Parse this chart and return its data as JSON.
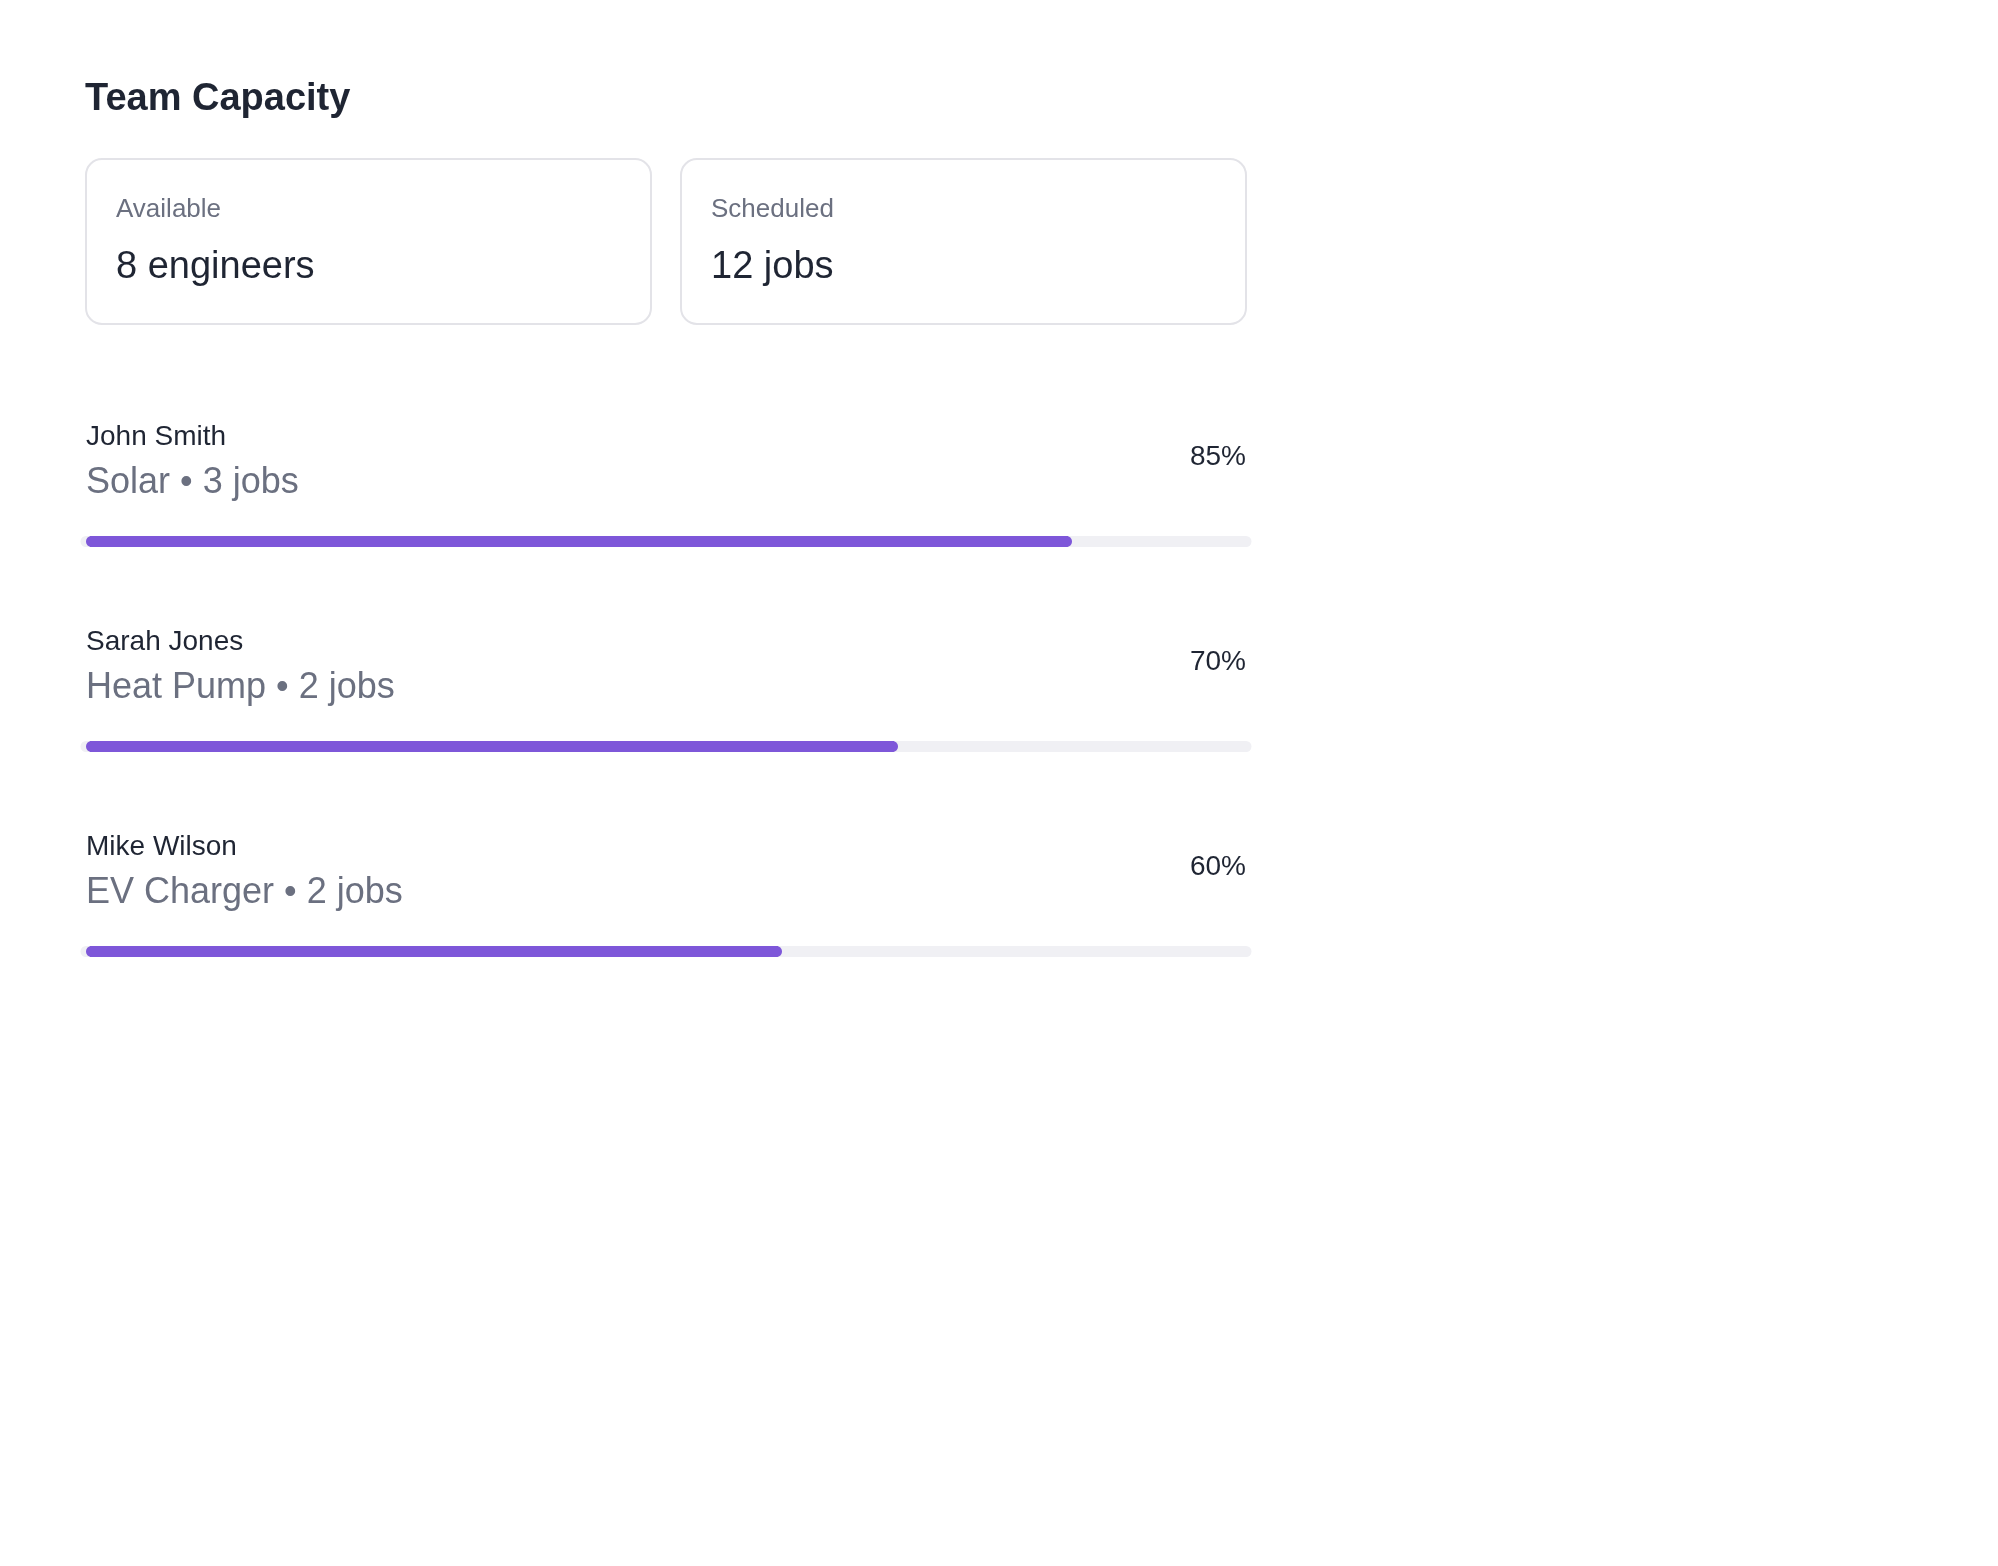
{
  "chart_data": [
    {
      "type": "other",
      "title": "Team Capacity",
      "annotations": [
        "Available",
        "8 engineers",
        "Scheduled",
        "12 jobs"
      ]
    },
    {
      "type": "bar",
      "orientation": "horizontal",
      "categories": [
        "John Smith",
        "Sarah Jones",
        "Mike Wilson"
      ],
      "annotations": [
        "Solar • 3 jobs",
        "Heat Pump • 2 jobs",
        "EV Charger • 2 jobs"
      ],
      "values": [
        85,
        70,
        60
      ],
      "value_labels": [
        "85%",
        "70%",
        "60%"
      ],
      "color": "#7e57d9",
      "xlim": [
        0,
        100
      ]
    }
  ]
}
